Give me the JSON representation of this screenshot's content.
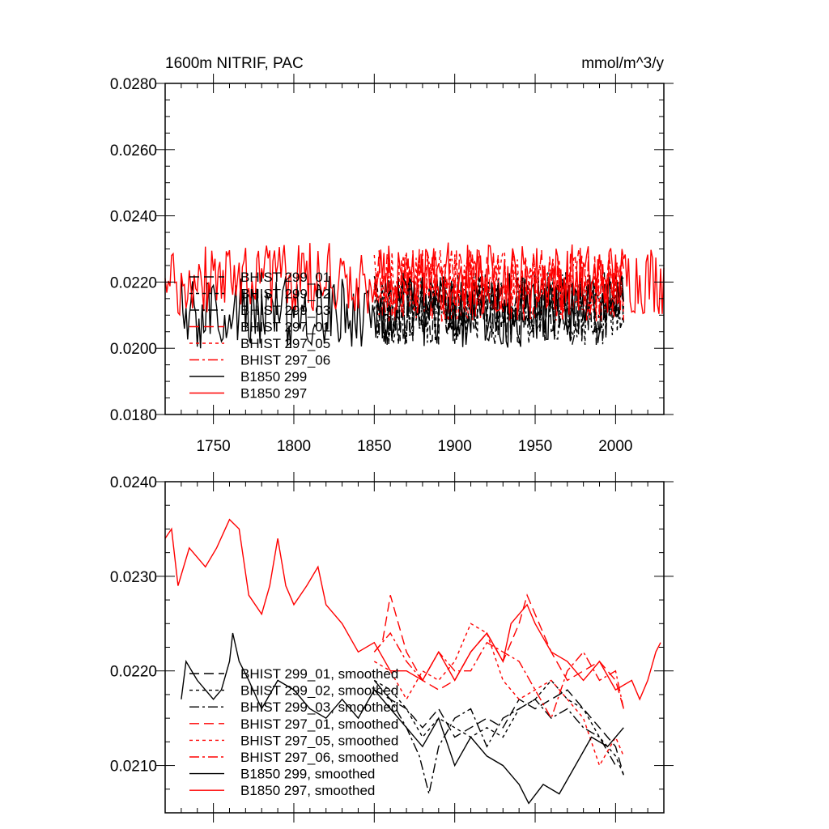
{
  "chart_data": [
    {
      "type": "line",
      "title": "1600m NITRIF, PAC",
      "units": "mmol/m^3/y",
      "xlim": [
        1720,
        2030
      ],
      "ylim": [
        0.018,
        0.028
      ],
      "yticks": [
        "0.0180",
        "0.0200",
        "0.0220",
        "0.0240",
        "0.0260",
        "0.0280"
      ],
      "xticks": [
        "1750",
        "1800",
        "1850",
        "1900",
        "1950",
        "2000"
      ],
      "legend_position": "lower-left",
      "series": [
        {
          "name": "BHIST 299_01",
          "color": "#000000",
          "dash": "long",
          "x_start": 1850,
          "x_end": 2005,
          "mean": 0.0212,
          "amplitude": 0.0011,
          "seed": 11
        },
        {
          "name": "BHIST 299_02",
          "color": "#000000",
          "dash": "short",
          "x_start": 1850,
          "x_end": 2005,
          "mean": 0.0212,
          "amplitude": 0.0011,
          "seed": 12
        },
        {
          "name": "BHIST 299_03",
          "color": "#000000",
          "dash": "dashdot",
          "x_start": 1850,
          "x_end": 2005,
          "mean": 0.0212,
          "amplitude": 0.0011,
          "seed": 13
        },
        {
          "name": "BHIST 297_01",
          "color": "#ff0000",
          "dash": "long",
          "x_start": 1850,
          "x_end": 2005,
          "mean": 0.0219,
          "amplitude": 0.0011,
          "seed": 21
        },
        {
          "name": "BHIST 297_05",
          "color": "#ff0000",
          "dash": "short",
          "x_start": 1850,
          "x_end": 2005,
          "mean": 0.0219,
          "amplitude": 0.0011,
          "seed": 22
        },
        {
          "name": "BHIST 297_06",
          "color": "#ff0000",
          "dash": "dashdot",
          "x_start": 1850,
          "x_end": 2005,
          "mean": 0.0219,
          "amplitude": 0.0011,
          "seed": 23
        },
        {
          "name": "B1850 299",
          "color": "#000000",
          "dash": "solid",
          "x_start": 1730,
          "x_end": 2005,
          "mean": 0.0211,
          "amplitude": 0.0011,
          "seed": 31
        },
        {
          "name": "B1850 297",
          "color": "#ff0000",
          "dash": "solid",
          "x_start": 1720,
          "x_end": 2030,
          "mean": 0.0221,
          "amplitude": 0.0011,
          "seed": 41
        }
      ]
    },
    {
      "type": "line",
      "title": "",
      "xlim": [
        1720,
        2030
      ],
      "ylim": [
        0.0205,
        0.024
      ],
      "yticks": [
        "0.0210",
        "0.0220",
        "0.0230",
        "0.0240"
      ],
      "xticks": [],
      "legend_position": "lower-left",
      "series": [
        {
          "name": "BHIST 299_01, smoothed",
          "color": "#000000",
          "dash": "long",
          "points": [
            [
              1850,
              0.0218
            ],
            [
              1860,
              0.0217
            ],
            [
              1870,
              0.0216
            ],
            [
              1880,
              0.0214
            ],
            [
              1890,
              0.0216
            ],
            [
              1900,
              0.0213
            ],
            [
              1910,
              0.0214
            ],
            [
              1920,
              0.0215
            ],
            [
              1930,
              0.0214
            ],
            [
              1940,
              0.0217
            ],
            [
              1950,
              0.0216
            ],
            [
              1960,
              0.0217
            ],
            [
              1970,
              0.0218
            ],
            [
              1980,
              0.0216
            ],
            [
              1990,
              0.0214
            ],
            [
              2000,
              0.0212
            ],
            [
              2005,
              0.0209
            ]
          ]
        },
        {
          "name": "BHIST 299_02, smoothed",
          "color": "#000000",
          "dash": "short",
          "points": [
            [
              1850,
              0.0219
            ],
            [
              1860,
              0.0218
            ],
            [
              1870,
              0.0216
            ],
            [
              1880,
              0.0213
            ],
            [
              1890,
              0.0215
            ],
            [
              1900,
              0.0214
            ],
            [
              1910,
              0.0213
            ],
            [
              1920,
              0.0214
            ],
            [
              1930,
              0.0213
            ],
            [
              1940,
              0.0216
            ],
            [
              1950,
              0.0217
            ],
            [
              1960,
              0.0219
            ],
            [
              1970,
              0.0217
            ],
            [
              1980,
              0.0216
            ],
            [
              1990,
              0.0213
            ],
            [
              2000,
              0.0211
            ],
            [
              2005,
              0.0209
            ]
          ]
        },
        {
          "name": "BHIST 299_03, smoothed",
          "color": "#000000",
          "dash": "dashdot",
          "points": [
            [
              1850,
              0.0219
            ],
            [
              1860,
              0.0217
            ],
            [
              1870,
              0.0214
            ],
            [
              1878,
              0.0211
            ],
            [
              1884,
              0.0207
            ],
            [
              1890,
              0.0212
            ],
            [
              1900,
              0.0215
            ],
            [
              1910,
              0.0216
            ],
            [
              1920,
              0.0212
            ],
            [
              1930,
              0.0215
            ],
            [
              1940,
              0.0216
            ],
            [
              1950,
              0.0217
            ],
            [
              1960,
              0.0215
            ],
            [
              1970,
              0.0216
            ],
            [
              1980,
              0.0214
            ],
            [
              1990,
              0.0213
            ],
            [
              2000,
              0.021
            ]
          ]
        },
        {
          "name": "BHIST 297_01, smoothed",
          "color": "#ff0000",
          "dash": "long",
          "points": [
            [
              1850,
              0.0222
            ],
            [
              1855,
              0.0223
            ],
            [
              1860,
              0.0228
            ],
            [
              1865,
              0.0225
            ],
            [
              1870,
              0.0222
            ],
            [
              1880,
              0.0219
            ],
            [
              1890,
              0.0218
            ],
            [
              1900,
              0.0219
            ],
            [
              1910,
              0.0222
            ],
            [
              1920,
              0.0224
            ],
            [
              1930,
              0.0221
            ],
            [
              1940,
              0.0225
            ],
            [
              1945,
              0.0228
            ],
            [
              1950,
              0.0226
            ],
            [
              1960,
              0.0222
            ],
            [
              1970,
              0.0219
            ],
            [
              1980,
              0.022
            ],
            [
              1990,
              0.0221
            ],
            [
              2000,
              0.0219
            ],
            [
              2005,
              0.0216
            ]
          ]
        },
        {
          "name": "BHIST 297_05, smoothed",
          "color": "#ff0000",
          "dash": "short",
          "points": [
            [
              1850,
              0.0221
            ],
            [
              1860,
              0.022
            ],
            [
              1870,
              0.0217
            ],
            [
              1880,
              0.022
            ],
            [
              1890,
              0.0219
            ],
            [
              1900,
              0.0221
            ],
            [
              1910,
              0.0225
            ],
            [
              1920,
              0.0224
            ],
            [
              1930,
              0.0219
            ],
            [
              1940,
              0.0217
            ],
            [
              1950,
              0.0218
            ],
            [
              1960,
              0.0219
            ],
            [
              1970,
              0.0217
            ],
            [
              1980,
              0.0215
            ],
            [
              1990,
              0.021
            ],
            [
              2000,
              0.0213
            ],
            [
              2005,
              0.0211
            ]
          ]
        },
        {
          "name": "BHIST 297_06, smoothed",
          "color": "#ff0000",
          "dash": "dashdot",
          "points": [
            [
              1850,
              0.0222
            ],
            [
              1860,
              0.0224
            ],
            [
              1870,
              0.0221
            ],
            [
              1880,
              0.0219
            ],
            [
              1890,
              0.0222
            ],
            [
              1900,
              0.022
            ],
            [
              1910,
              0.022
            ],
            [
              1920,
              0.0223
            ],
            [
              1930,
              0.0222
            ],
            [
              1940,
              0.0221
            ],
            [
              1950,
              0.0218
            ],
            [
              1960,
              0.0215
            ],
            [
              1970,
              0.022
            ],
            [
              1980,
              0.0222
            ],
            [
              1990,
              0.0219
            ],
            [
              2000,
              0.022
            ],
            [
              2005,
              0.0216
            ]
          ]
        },
        {
          "name": "B1850 299, smoothed",
          "color": "#000000",
          "dash": "solid",
          "points": [
            [
              1730,
              0.0217
            ],
            [
              1733,
              0.0221
            ],
            [
              1740,
              0.0219
            ],
            [
              1750,
              0.0217
            ],
            [
              1755,
              0.0218
            ],
            [
              1760,
              0.0221
            ],
            [
              1762,
              0.0224
            ],
            [
              1766,
              0.0221
            ],
            [
              1772,
              0.0219
            ],
            [
              1780,
              0.0216
            ],
            [
              1790,
              0.0219
            ],
            [
              1800,
              0.0218
            ],
            [
              1810,
              0.0216
            ],
            [
              1820,
              0.0215
            ],
            [
              1830,
              0.0217
            ],
            [
              1840,
              0.0215
            ],
            [
              1850,
              0.0218
            ],
            [
              1860,
              0.0216
            ],
            [
              1870,
              0.0214
            ],
            [
              1880,
              0.0212
            ],
            [
              1890,
              0.0215
            ],
            [
              1900,
              0.021
            ],
            [
              1910,
              0.0213
            ],
            [
              1920,
              0.0211
            ],
            [
              1930,
              0.021
            ],
            [
              1940,
              0.0208
            ],
            [
              1946,
              0.0206
            ],
            [
              1955,
              0.0208
            ],
            [
              1965,
              0.0207
            ],
            [
              1975,
              0.021
            ],
            [
              1985,
              0.0213
            ],
            [
              1995,
              0.0212
            ],
            [
              2005,
              0.0214
            ]
          ]
        },
        {
          "name": "B1850 297, smoothed",
          "color": "#ff0000",
          "dash": "solid",
          "points": [
            [
              1720,
              0.0234
            ],
            [
              1724,
              0.0235
            ],
            [
              1728,
              0.0229
            ],
            [
              1735,
              0.0233
            ],
            [
              1745,
              0.0231
            ],
            [
              1752,
              0.0233
            ],
            [
              1760,
              0.0236
            ],
            [
              1766,
              0.0235
            ],
            [
              1772,
              0.0228
            ],
            [
              1780,
              0.0226
            ],
            [
              1785,
              0.0229
            ],
            [
              1790,
              0.0234
            ],
            [
              1795,
              0.0229
            ],
            [
              1800,
              0.0227
            ],
            [
              1808,
              0.0229
            ],
            [
              1815,
              0.0231
            ],
            [
              1820,
              0.0227
            ],
            [
              1830,
              0.0225
            ],
            [
              1840,
              0.0222
            ],
            [
              1850,
              0.0223
            ],
            [
              1860,
              0.022
            ],
            [
              1870,
              0.022
            ],
            [
              1880,
              0.0219
            ],
            [
              1890,
              0.0222
            ],
            [
              1900,
              0.0219
            ],
            [
              1910,
              0.0222
            ],
            [
              1920,
              0.0224
            ],
            [
              1930,
              0.0221
            ],
            [
              1935,
              0.0225
            ],
            [
              1945,
              0.0227
            ],
            [
              1950,
              0.0225
            ],
            [
              1960,
              0.0222
            ],
            [
              1970,
              0.0221
            ],
            [
              1980,
              0.0219
            ],
            [
              1990,
              0.0221
            ],
            [
              2000,
              0.0218
            ],
            [
              2010,
              0.0219
            ],
            [
              2015,
              0.0217
            ],
            [
              2020,
              0.0219
            ],
            [
              2025,
              0.0222
            ],
            [
              2028,
              0.0223
            ]
          ]
        }
      ]
    }
  ]
}
